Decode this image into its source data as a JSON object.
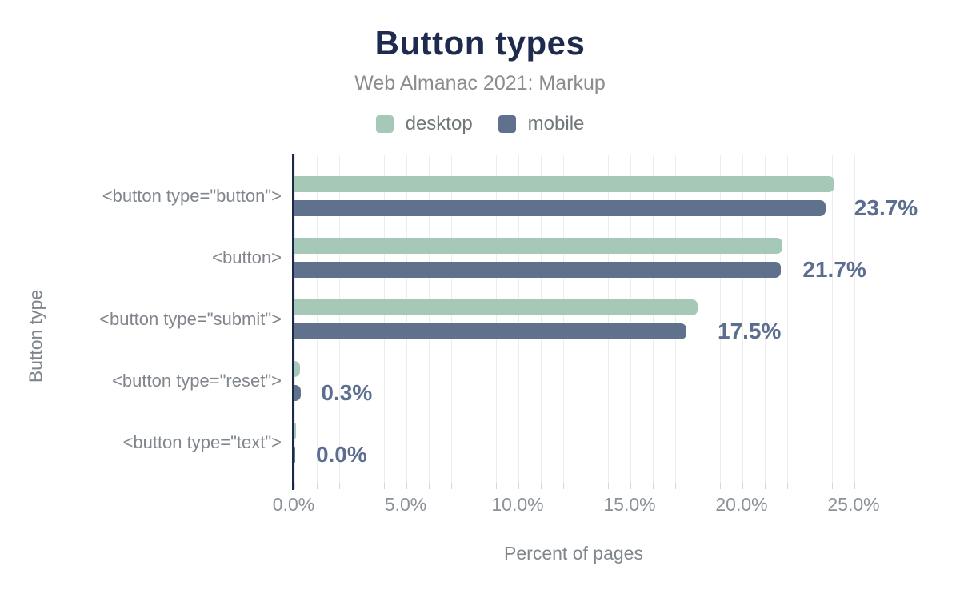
{
  "chart_data": {
    "type": "bar",
    "orientation": "horizontal",
    "title": "Button types",
    "subtitle": "Web Almanac 2021: Markup",
    "xlabel": "Percent of pages",
    "ylabel": "Button type",
    "categories": [
      "<button type=\"button\">",
      "<button>",
      "<button type=\"submit\">",
      "<button type=\"reset\">",
      "<button type=\"text\">"
    ],
    "series": [
      {
        "name": "desktop",
        "color": "#a6c9b7",
        "values": [
          24.1,
          21.8,
          18.0,
          0.25,
          0.07
        ]
      },
      {
        "name": "mobile",
        "color": "#5f718c",
        "values": [
          23.7,
          21.7,
          17.5,
          0.3,
          0.04
        ]
      }
    ],
    "value_labels": [
      "23.7%",
      "21.7%",
      "17.5%",
      "0.3%",
      "0.0%"
    ],
    "x_ticks": [
      "0.0%",
      "5.0%",
      "10.0%",
      "15.0%",
      "20.0%",
      "25.0%"
    ],
    "x_tick_values": [
      0,
      5,
      10,
      15,
      20,
      25
    ],
    "xlim": [
      0,
      25
    ],
    "grid_step_pct": 1,
    "legend_position": "top",
    "grid": true
  },
  "colors": {
    "title_navy": "#1e2b4f",
    "axis_navy": "#1c2a49",
    "annotation_slate": "#5b6e8f",
    "desktop_green": "#a6c9b7",
    "mobile_blue": "#5f718c",
    "muted_gray": "#8c8c8c"
  }
}
